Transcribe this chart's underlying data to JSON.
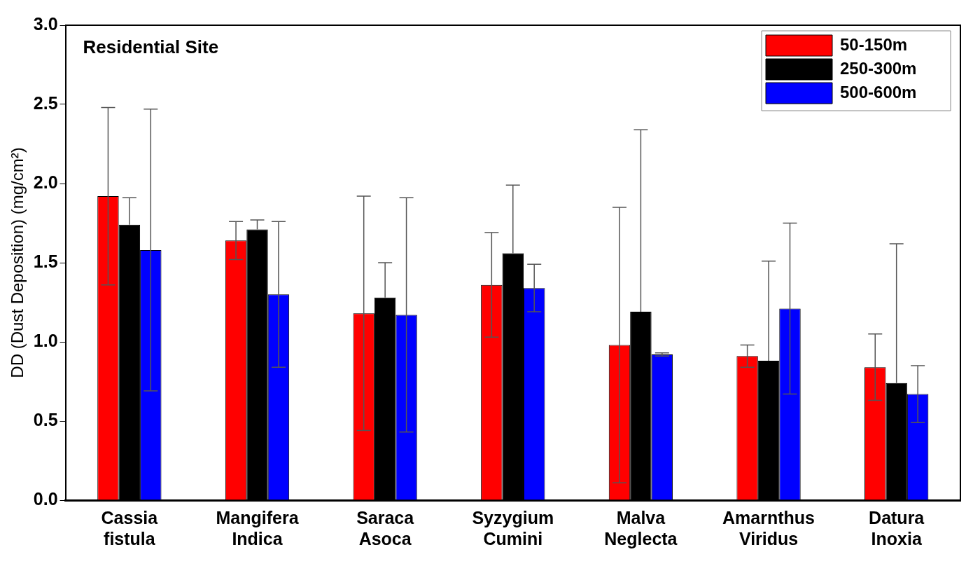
{
  "chart_data": {
    "type": "bar",
    "title": "Residential Site",
    "ylabel": "DD (Dust Deposition) (mg/cm²)",
    "categories": [
      "Cassia fistula",
      "Mangifera Indica",
      "Saraca Asoca",
      "Syzygium Cumini",
      "Malva Neglecta",
      "Amarnthus Viridus",
      "Datura Inoxia"
    ],
    "series": [
      {
        "name": "50-150m",
        "color": "#ff0000",
        "values": [
          1.92,
          1.64,
          1.18,
          1.36,
          0.98,
          0.91,
          0.84
        ],
        "errors": [
          0.56,
          0.12,
          0.74,
          0.33,
          0.87,
          0.07,
          0.21
        ]
      },
      {
        "name": "250-300m",
        "color": "#000000",
        "values": [
          1.74,
          1.71,
          1.28,
          1.56,
          1.19,
          0.88,
          0.74
        ],
        "errors": [
          [
            1.74,
            1.91
          ],
          [
            1.71,
            1.77
          ],
          [
            1.28,
            1.5
          ],
          [
            1.56,
            1.99
          ],
          [
            1.19,
            2.34
          ],
          [
            0.88,
            1.51
          ],
          [
            0.74,
            1.62
          ]
        ]
      },
      {
        "name": "500-600m",
        "color": "#0000ff",
        "values": [
          1.58,
          1.3,
          1.17,
          1.34,
          0.92,
          1.21,
          0.67
        ],
        "errors": [
          0.89,
          0.46,
          0.74,
          0.15,
          0.01,
          0.54,
          0.18
        ]
      }
    ],
    "ylim": [
      0,
      3
    ],
    "yticks": [
      {
        "value": 0,
        "label": "0.0"
      },
      {
        "value": 0.5,
        "label": "0.5"
      },
      {
        "value": 1,
        "label": "1.0"
      },
      {
        "value": 1.5,
        "label": "1.5"
      },
      {
        "value": 2,
        "label": "2.0"
      },
      {
        "value": 2.5,
        "label": "2.5"
      },
      {
        "value": 3,
        "label": "3.0"
      }
    ],
    "grid": false,
    "legend": "top right"
  }
}
